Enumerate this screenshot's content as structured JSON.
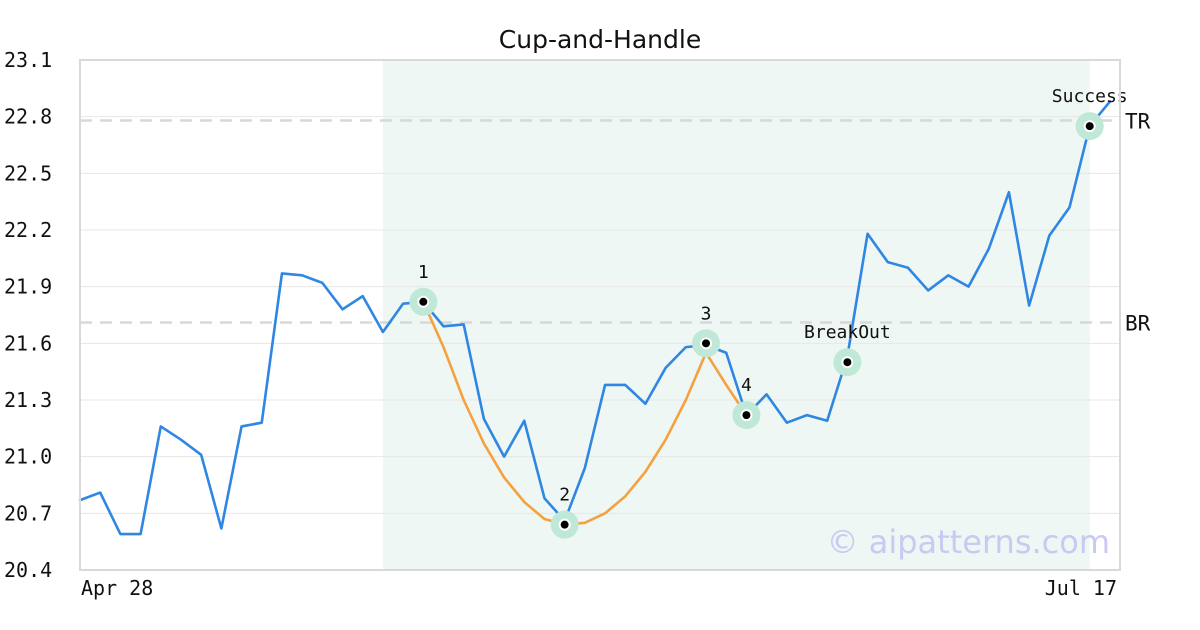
{
  "chart_data": {
    "type": "line",
    "title": "Cup-and-Handle",
    "xlabel": "",
    "ylabel": "",
    "ylim": [
      20.4,
      23.1
    ],
    "yticks": [
      "23.1",
      "22.8",
      "22.5",
      "22.2",
      "21.9",
      "21.6",
      "21.3",
      "21.0",
      "20.7",
      "20.4"
    ],
    "x_range_labels": {
      "start": "Apr 28",
      "end": "Jul 17"
    },
    "grid": true,
    "highlight_range": [
      15,
      50
    ],
    "series": [
      {
        "values": [
          20.77,
          20.81,
          20.59,
          20.59,
          21.16,
          21.09,
          21.01,
          20.62,
          21.16,
          21.18,
          21.97,
          21.96,
          21.92,
          21.78,
          21.85,
          21.66,
          21.81,
          21.82,
          21.69,
          21.7,
          21.2,
          21.0,
          21.19,
          20.78,
          20.66,
          20.94,
          21.38,
          21.38,
          21.28,
          21.47,
          21.58,
          21.59,
          21.55,
          21.22,
          21.33,
          21.18,
          21.22,
          21.19,
          21.53,
          22.18,
          22.03,
          22.0,
          21.88,
          21.96,
          21.9,
          22.1,
          22.4,
          21.8,
          22.17,
          22.32,
          22.75,
          22.88
        ]
      },
      {
        "values": [
          [
            17,
            21.82
          ],
          [
            18,
            21.58
          ],
          [
            19,
            21.3
          ],
          [
            20,
            21.07
          ],
          [
            21,
            20.89
          ],
          [
            22,
            20.76
          ],
          [
            23,
            20.67
          ],
          [
            24,
            20.64
          ],
          [
            25,
            20.65
          ],
          [
            26,
            20.7
          ],
          [
            27,
            20.79
          ],
          [
            28,
            20.92
          ],
          [
            29,
            21.09
          ],
          [
            30,
            21.3
          ],
          [
            31,
            21.55
          ],
          [
            32,
            21.38
          ],
          [
            33,
            21.22
          ]
        ]
      }
    ],
    "markers": [
      {
        "label": "1",
        "x": 17,
        "y": 21.82
      },
      {
        "label": "2",
        "x": 24,
        "y": 20.64
      },
      {
        "label": "3",
        "x": 31,
        "y": 21.6
      },
      {
        "label": "4",
        "x": 33,
        "y": 21.22
      },
      {
        "label": "BreakOut",
        "x": 38,
        "y": 21.5
      },
      {
        "label": "Success",
        "x": 50,
        "y": 22.75
      }
    ],
    "reference_lines": [
      {
        "label": "TR",
        "y": 22.78
      },
      {
        "label": "BR",
        "y": 21.71
      }
    ],
    "watermark": "© aipatterns.com",
    "colors": {
      "price": "#2f86e3",
      "pattern": "#f4a13f",
      "highlight": "#eef7f3",
      "marker_halo": "#bfe8d6",
      "refline": "#d8d8d8",
      "grid": "#e7e7e7",
      "frame": "#d9d9d9",
      "watermark": "#c9c9f3"
    }
  }
}
